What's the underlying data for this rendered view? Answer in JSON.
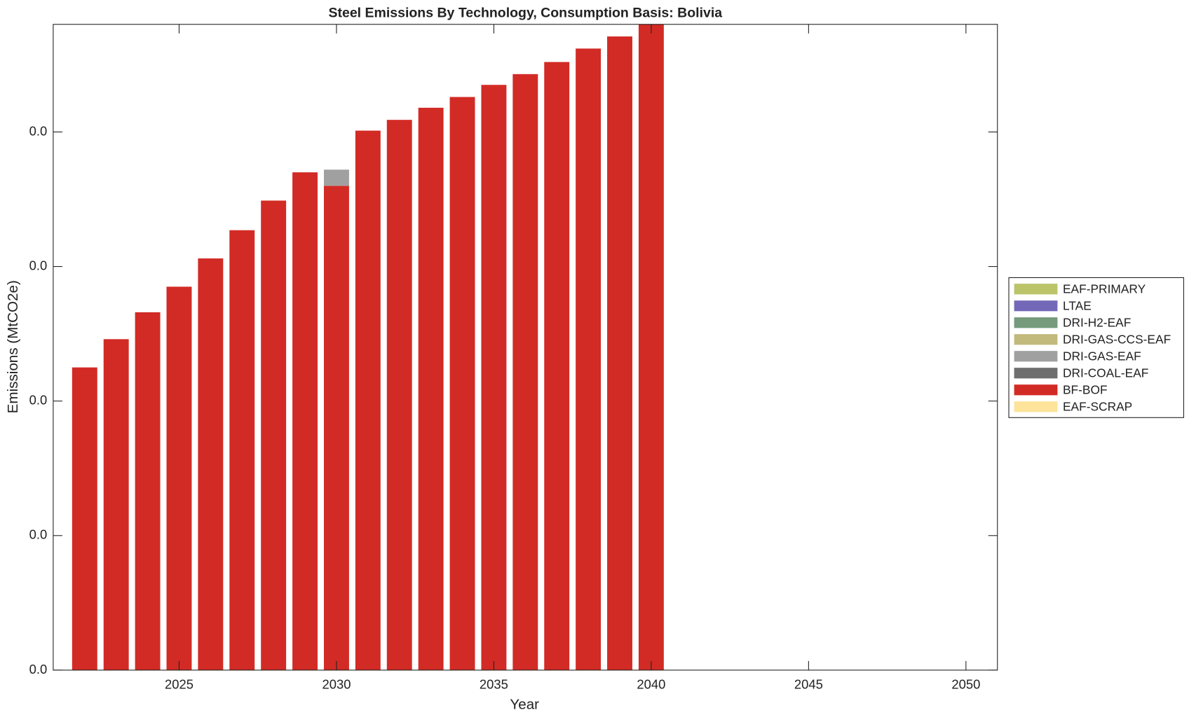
{
  "chart_data": {
    "type": "stacked_bar",
    "title": "Steel Emissions By Technology, Consumption Basis: Bolivia",
    "x_label": "Year",
    "y_label": "Emissions (MtCO2e)",
    "x": [
      2022,
      2023,
      2024,
      2025,
      2026,
      2027,
      2028,
      2029,
      2030,
      2031,
      2032,
      2033,
      2034,
      2035,
      2036,
      2037,
      2038,
      2039,
      2040
    ],
    "series": [
      {
        "name": "EAF-PRIMARY",
        "color": "#bcc46a",
        "values": [
          0,
          0,
          0,
          0,
          0,
          0,
          0,
          0,
          0,
          0,
          0,
          0,
          0,
          0,
          0,
          0,
          0,
          0,
          0
        ]
      },
      {
        "name": "LTAE",
        "color": "#7368b8",
        "values": [
          0,
          0,
          0,
          0,
          0,
          0,
          0,
          0,
          0,
          0,
          0,
          0,
          0,
          0,
          0,
          0,
          0,
          0,
          0
        ]
      },
      {
        "name": "DRI-H2-EAF",
        "color": "#759a7c",
        "values": [
          0,
          0,
          0,
          0,
          0,
          0,
          0,
          0,
          0,
          0,
          0,
          0,
          0,
          0,
          0,
          0,
          0,
          0,
          0
        ]
      },
      {
        "name": "DRI-GAS-CCS-EAF",
        "color": "#c2b97c",
        "values": [
          0,
          0,
          0,
          0,
          0,
          0,
          0,
          0,
          0,
          0,
          0,
          0,
          0,
          0,
          0,
          0,
          0,
          0,
          0
        ]
      },
      {
        "name": "DRI-GAS-EAF",
        "color": "#a0a0a0",
        "values": [
          0,
          0,
          0,
          0,
          0,
          0,
          0,
          0,
          0.0012,
          0,
          0,
          0,
          0,
          0,
          0,
          0,
          0,
          0,
          0
        ]
      },
      {
        "name": "DRI-COAL-EAF",
        "color": "#6e6e6e",
        "values": [
          0,
          0,
          0,
          0,
          0,
          0,
          0,
          0,
          0,
          0,
          0,
          0,
          0,
          0,
          0,
          0,
          0,
          0,
          0
        ]
      },
      {
        "name": "BF-BOF",
        "color": "#d22b25",
        "values": [
          0.0225,
          0.0246,
          0.0266,
          0.0285,
          0.0306,
          0.0327,
          0.0349,
          0.037,
          0.036,
          0.0401,
          0.0409,
          0.0418,
          0.0426,
          0.0435,
          0.0443,
          0.0452,
          0.0462,
          0.0471,
          0.0485
        ]
      },
      {
        "name": "EAF-SCRAP",
        "color": "#fde49a",
        "values": [
          0,
          0,
          0,
          0,
          0,
          0,
          0,
          0,
          0,
          0,
          0,
          0,
          0,
          0,
          0,
          0,
          0,
          0,
          0
        ]
      }
    ],
    "xlim": [
      2021,
      2051
    ],
    "xticks": [
      2025,
      2030,
      2035,
      2040,
      2045,
      2050
    ],
    "ylim": [
      0,
      0.048
    ],
    "yticks": [
      {
        "value": 0,
        "label": "0.0"
      },
      {
        "value": 0.01,
        "label": "0.0"
      },
      {
        "value": 0.02,
        "label": "0.0"
      },
      {
        "value": 0.03,
        "label": "0.0"
      },
      {
        "value": 0.04,
        "label": "0.0"
      }
    ],
    "legend": "outside-right"
  }
}
